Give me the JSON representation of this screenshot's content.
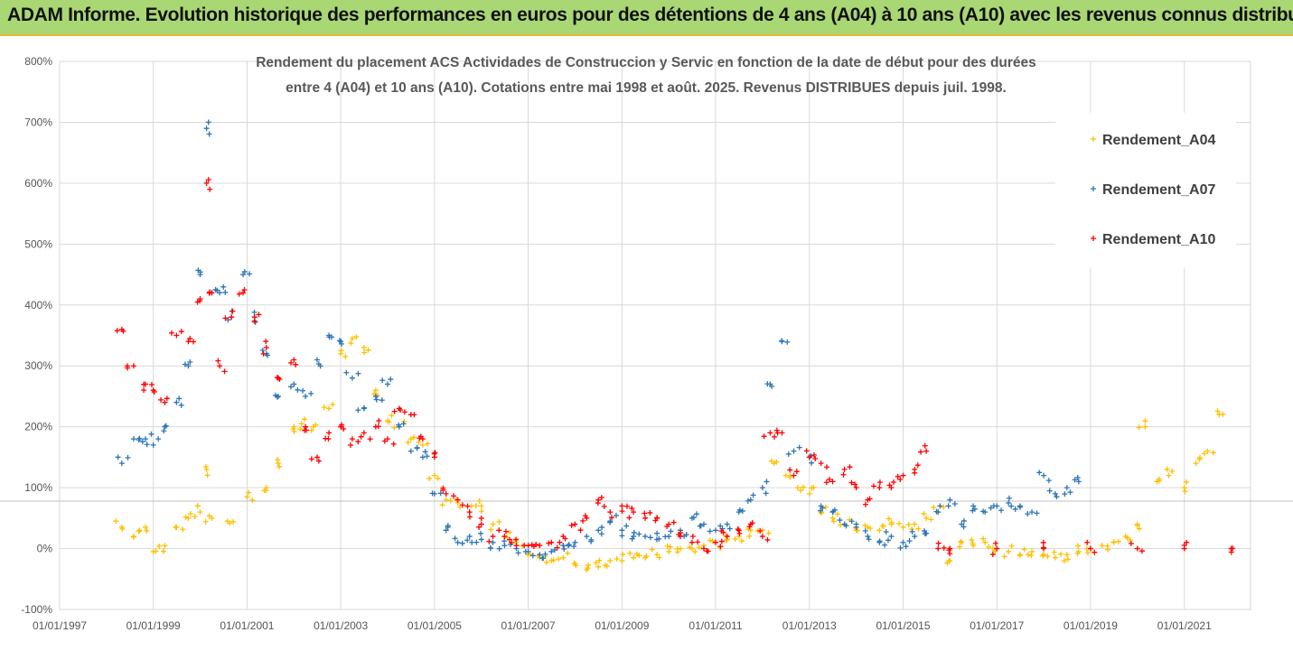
{
  "banner": {
    "title": "ADAM Informe. Evolution historique des performances en euros pour des détentions de 4 ans (A04) à 10 ans (A10) avec les revenus connus distribués"
  },
  "colors": {
    "banner_bg": "#a9d774",
    "banner_border": "#e8b93a",
    "a04": "#ffc000",
    "a07": "#2e75b6",
    "a10": "#ff0000"
  },
  "chart_data": {
    "type": "scatter",
    "title_lines": [
      "Rendement du placement ACS Actividades de Construccion y Servic en fonction de la date de début pour des durées",
      "entre 4 (A04) et 10 ans (A10). Cotations entre mai 1998 et août. 2025. Revenus DISTRIBUES depuis juil. 1998."
    ],
    "y_ticks": [
      "800%",
      "700%",
      "600%",
      "500%",
      "400%",
      "300%",
      "200%",
      "100%",
      "0%",
      "-100%"
    ],
    "x_ticks": [
      "01/01/1997",
      "01/01/1999",
      "01/01/2001",
      "01/01/2003",
      "01/01/2005",
      "01/01/2007",
      "01/01/2009",
      "01/01/2011",
      "01/01/2013",
      "01/01/2015",
      "01/01/2017",
      "01/01/2019",
      "01/01/2021"
    ],
    "xlim": [
      "1997-01-01",
      "2022-06-01"
    ],
    "ylim": [
      -100,
      800
    ],
    "grid": true,
    "reference_line": 78,
    "legend_position": "top-right",
    "series": [
      {
        "name": "Rendement_A04",
        "color": "#ffc000",
        "points": [
          [
            "1998-05-01",
            35
          ],
          [
            "1998-08-01",
            20
          ],
          [
            "1998-11-01",
            35
          ],
          [
            "1999-01-01",
            -5
          ],
          [
            "1999-04-01",
            5
          ],
          [
            "1999-07-01",
            35
          ],
          [
            "1999-10-01",
            50
          ],
          [
            "2000-01-01",
            60
          ],
          [
            "2000-02-20",
            130
          ],
          [
            "2000-04-01",
            50
          ],
          [
            "2000-08-01",
            45
          ],
          [
            "2001-01-01",
            85
          ],
          [
            "2001-06-01",
            100
          ],
          [
            "2001-09-01",
            140
          ],
          [
            "2002-01-01",
            200
          ],
          [
            "2002-03-01",
            205
          ],
          [
            "2002-06-01",
            200
          ],
          [
            "2002-10-01",
            230
          ],
          [
            "2003-01-01",
            320
          ],
          [
            "2003-04-01",
            345
          ],
          [
            "2003-07-01",
            330
          ],
          [
            "2003-10-01",
            260
          ],
          [
            "2004-01-01",
            210
          ],
          [
            "2004-04-01",
            200
          ],
          [
            "2004-07-01",
            180
          ],
          [
            "2004-10-01",
            170
          ],
          [
            "2005-01-01",
            120
          ],
          [
            "2005-04-01",
            80
          ],
          [
            "2005-07-01",
            75
          ],
          [
            "2005-10-01",
            60
          ],
          [
            "2006-01-01",
            70
          ],
          [
            "2006-04-01",
            40
          ],
          [
            "2006-07-01",
            20
          ],
          [
            "2006-10-01",
            10
          ],
          [
            "2007-01-01",
            -10
          ],
          [
            "2007-04-01",
            -15
          ],
          [
            "2007-07-01",
            -20
          ],
          [
            "2007-10-01",
            -15
          ],
          [
            "2008-01-01",
            -25
          ],
          [
            "2008-04-01",
            -35
          ],
          [
            "2008-07-01",
            -30
          ],
          [
            "2008-10-01",
            -20
          ],
          [
            "2009-01-01",
            -20
          ],
          [
            "2009-04-01",
            -15
          ],
          [
            "2009-07-01",
            -15
          ],
          [
            "2009-10-01",
            -10
          ],
          [
            "2010-01-01",
            -5
          ],
          [
            "2010-04-01",
            0
          ],
          [
            "2010-07-01",
            0
          ],
          [
            "2010-10-01",
            5
          ],
          [
            "2011-01-01",
            10
          ],
          [
            "2011-04-01",
            15
          ],
          [
            "2011-07-01",
            20
          ],
          [
            "2011-10-01",
            30
          ],
          [
            "2012-01-01",
            30
          ],
          [
            "2012-04-01",
            140
          ],
          [
            "2012-07-01",
            120
          ],
          [
            "2012-10-01",
            100
          ],
          [
            "2013-01-01",
            90
          ],
          [
            "2013-04-01",
            60
          ],
          [
            "2013-07-01",
            50
          ],
          [
            "2013-10-01",
            40
          ],
          [
            "2014-01-01",
            30
          ],
          [
            "2014-04-01",
            35
          ],
          [
            "2014-07-01",
            30
          ],
          [
            "2014-10-01",
            40
          ],
          [
            "2015-01-01",
            35
          ],
          [
            "2015-04-01",
            40
          ],
          [
            "2015-07-01",
            50
          ],
          [
            "2015-10-01",
            60
          ],
          [
            "2016-01-01",
            -20
          ],
          [
            "2016-04-01",
            10
          ],
          [
            "2016-07-01",
            5
          ],
          [
            "2016-10-01",
            10
          ],
          [
            "2017-01-01",
            0
          ],
          [
            "2017-04-01",
            -5
          ],
          [
            "2017-07-01",
            -10
          ],
          [
            "2017-10-01",
            -5
          ],
          [
            "2018-01-01",
            -10
          ],
          [
            "2018-04-01",
            -15
          ],
          [
            "2018-07-01",
            -10
          ],
          [
            "2018-10-01",
            -5
          ],
          [
            "2019-01-01",
            0
          ],
          [
            "2019-04-01",
            5
          ],
          [
            "2019-07-01",
            10
          ],
          [
            "2019-10-01",
            20
          ],
          [
            "2020-01-01",
            40
          ],
          [
            "2020-03-01",
            200
          ],
          [
            "2020-06-01",
            110
          ],
          [
            "2020-09-01",
            120
          ],
          [
            "2021-01-01",
            100
          ],
          [
            "2021-04-01",
            140
          ],
          [
            "2021-07-01",
            160
          ],
          [
            "2021-10-01",
            220
          ]
        ]
      },
      {
        "name": "Rendement_A07",
        "color": "#2e75b6",
        "points": [
          [
            "1998-05-01",
            140
          ],
          [
            "1998-08-01",
            180
          ],
          [
            "1998-11-01",
            180
          ],
          [
            "1999-01-01",
            170
          ],
          [
            "1999-04-01",
            200
          ],
          [
            "1999-07-01",
            240
          ],
          [
            "1999-10-01",
            300
          ],
          [
            "2000-01-01",
            450
          ],
          [
            "2000-02-20",
            690
          ],
          [
            "2000-04-01",
            420
          ],
          [
            "2000-06-01",
            420
          ],
          [
            "2000-09-01",
            380
          ],
          [
            "2000-12-01",
            450
          ],
          [
            "2001-03-01",
            380
          ],
          [
            "2001-06-01",
            320
          ],
          [
            "2001-09-01",
            250
          ],
          [
            "2002-01-01",
            270
          ],
          [
            "2002-04-01",
            250
          ],
          [
            "2002-07-01",
            310
          ],
          [
            "2002-10-01",
            350
          ],
          [
            "2003-01-01",
            340
          ],
          [
            "2003-04-01",
            280
          ],
          [
            "2003-07-01",
            230
          ],
          [
            "2003-10-01",
            250
          ],
          [
            "2004-01-01",
            270
          ],
          [
            "2004-04-01",
            200
          ],
          [
            "2004-07-01",
            160
          ],
          [
            "2004-10-01",
            150
          ],
          [
            "2005-01-01",
            90
          ],
          [
            "2005-04-01",
            30
          ],
          [
            "2005-07-01",
            10
          ],
          [
            "2005-10-01",
            20
          ],
          [
            "2006-01-01",
            15
          ],
          [
            "2006-04-01",
            10
          ],
          [
            "2006-07-01",
            5
          ],
          [
            "2006-10-01",
            0
          ],
          [
            "2007-01-01",
            -5
          ],
          [
            "2007-04-01",
            -10
          ],
          [
            "2007-07-01",
            -5
          ],
          [
            "2007-10-01",
            5
          ],
          [
            "2008-01-01",
            10
          ],
          [
            "2008-04-01",
            20
          ],
          [
            "2008-07-01",
            30
          ],
          [
            "2008-10-01",
            45
          ],
          [
            "2009-01-01",
            30
          ],
          [
            "2009-04-01",
            20
          ],
          [
            "2009-07-01",
            20
          ],
          [
            "2009-10-01",
            25
          ],
          [
            "2010-01-01",
            20
          ],
          [
            "2010-04-01",
            30
          ],
          [
            "2010-07-01",
            50
          ],
          [
            "2010-10-01",
            40
          ],
          [
            "2011-01-01",
            30
          ],
          [
            "2011-04-01",
            40
          ],
          [
            "2011-07-01",
            60
          ],
          [
            "2011-10-01",
            80
          ],
          [
            "2012-01-01",
            100
          ],
          [
            "2012-03-01",
            270
          ],
          [
            "2012-06-01",
            340
          ],
          [
            "2012-09-01",
            160
          ],
          [
            "2013-01-01",
            150
          ],
          [
            "2013-04-01",
            70
          ],
          [
            "2013-07-01",
            60
          ],
          [
            "2013-10-01",
            40
          ],
          [
            "2014-01-01",
            40
          ],
          [
            "2014-04-01",
            20
          ],
          [
            "2014-07-01",
            10
          ],
          [
            "2014-10-01",
            20
          ],
          [
            "2015-01-01",
            10
          ],
          [
            "2015-04-01",
            20
          ],
          [
            "2015-07-01",
            25
          ],
          [
            "2015-10-01",
            60
          ],
          [
            "2016-01-01",
            80
          ],
          [
            "2016-04-01",
            40
          ],
          [
            "2016-07-01",
            70
          ],
          [
            "2016-10-01",
            60
          ],
          [
            "2017-01-01",
            70
          ],
          [
            "2017-04-01",
            75
          ],
          [
            "2017-07-01",
            70
          ],
          [
            "2017-10-01",
            60
          ],
          [
            "2018-01-01",
            120
          ],
          [
            "2018-04-01",
            90
          ],
          [
            "2018-07-01",
            100
          ],
          [
            "2018-10-01",
            110
          ]
        ]
      },
      {
        "name": "Rendement_A10",
        "color": "#ff0000",
        "points": [
          [
            "1998-05-01",
            360
          ],
          [
            "1998-08-01",
            300
          ],
          [
            "1998-11-01",
            270
          ],
          [
            "1999-01-01",
            260
          ],
          [
            "1999-04-01",
            240
          ],
          [
            "1999-07-01",
            350
          ],
          [
            "1999-10-01",
            340
          ],
          [
            "2000-01-01",
            410
          ],
          [
            "2000-02-20",
            600
          ],
          [
            "2000-04-01",
            420
          ],
          [
            "2000-06-01",
            300
          ],
          [
            "2000-09-01",
            380
          ],
          [
            "2000-12-01",
            420
          ],
          [
            "2001-03-01",
            380
          ],
          [
            "2001-06-01",
            330
          ],
          [
            "2001-09-01",
            280
          ],
          [
            "2002-01-01",
            310
          ],
          [
            "2002-04-01",
            200
          ],
          [
            "2002-07-01",
            150
          ],
          [
            "2002-10-01",
            190
          ],
          [
            "2003-01-01",
            200
          ],
          [
            "2003-04-01",
            180
          ],
          [
            "2003-07-01",
            190
          ],
          [
            "2003-10-01",
            200
          ],
          [
            "2004-01-01",
            180
          ],
          [
            "2004-04-01",
            230
          ],
          [
            "2004-07-01",
            220
          ],
          [
            "2004-10-01",
            180
          ],
          [
            "2005-01-01",
            150
          ],
          [
            "2005-04-01",
            90
          ],
          [
            "2005-07-01",
            80
          ],
          [
            "2005-10-01",
            60
          ],
          [
            "2006-01-01",
            40
          ],
          [
            "2006-04-01",
            20
          ],
          [
            "2006-07-01",
            20
          ],
          [
            "2006-10-01",
            5
          ],
          [
            "2007-01-01",
            5
          ],
          [
            "2007-04-01",
            5
          ],
          [
            "2007-07-01",
            10
          ],
          [
            "2007-10-01",
            20
          ],
          [
            "2008-01-01",
            40
          ],
          [
            "2008-04-01",
            50
          ],
          [
            "2008-07-01",
            80
          ],
          [
            "2008-10-01",
            60
          ],
          [
            "2009-01-01",
            70
          ],
          [
            "2009-04-01",
            60
          ],
          [
            "2009-07-01",
            50
          ],
          [
            "2009-10-01",
            50
          ],
          [
            "2010-01-01",
            40
          ],
          [
            "2010-04-01",
            20
          ],
          [
            "2010-07-01",
            10
          ],
          [
            "2010-10-01",
            0
          ],
          [
            "2011-01-01",
            10
          ],
          [
            "2011-04-01",
            20
          ],
          [
            "2011-07-01",
            30
          ],
          [
            "2011-10-01",
            40
          ],
          [
            "2012-01-01",
            20
          ],
          [
            "2012-03-01",
            190
          ],
          [
            "2012-06-01",
            190
          ],
          [
            "2012-09-01",
            120
          ],
          [
            "2013-01-01",
            150
          ],
          [
            "2013-04-01",
            140
          ],
          [
            "2013-07-01",
            110
          ],
          [
            "2013-10-01",
            130
          ],
          [
            "2014-01-01",
            100
          ],
          [
            "2014-04-01",
            80
          ],
          [
            "2014-07-01",
            100
          ],
          [
            "2014-10-01",
            100
          ],
          [
            "2015-01-01",
            120
          ],
          [
            "2015-04-01",
            130
          ],
          [
            "2015-07-01",
            160
          ],
          [
            "2015-10-01",
            0
          ],
          [
            "2016-01-01",
            0
          ],
          [
            "2017-01-01",
            0
          ],
          [
            "2018-01-01",
            0
          ],
          [
            "2019-01-01",
            0
          ],
          [
            "2020-01-01",
            0
          ],
          [
            "2021-01-01",
            0
          ],
          [
            "2022-01-01",
            0
          ]
        ]
      }
    ]
  }
}
